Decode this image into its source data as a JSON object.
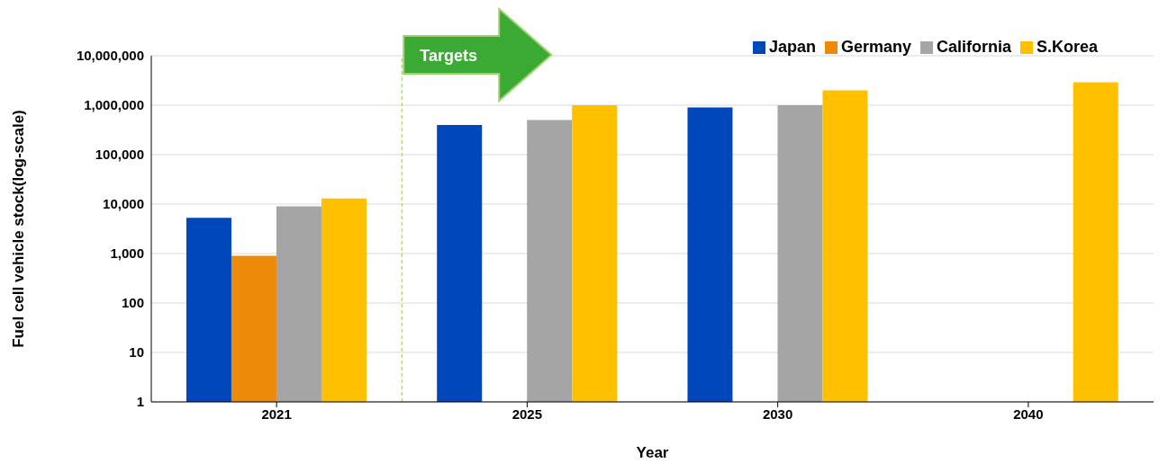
{
  "chart_data": {
    "type": "bar",
    "xlabel": "Year",
    "ylabel": "Fuel cell vehicle stock(log-scale)",
    "categories": [
      "2021",
      "2025",
      "2030",
      "2040"
    ],
    "series": [
      {
        "name": "Japan",
        "color": "#0047bb",
        "values": [
          5300,
          400000,
          900000,
          null
        ]
      },
      {
        "name": "Germany",
        "color": "#ee8a0a",
        "values": [
          900,
          null,
          null,
          null
        ]
      },
      {
        "name": "California",
        "color": "#a5a5a5",
        "values": [
          9000,
          500000,
          1000000,
          null
        ]
      },
      {
        "name": "S.Korea",
        "color": "#ffc000",
        "values": [
          13000,
          1000000,
          2000000,
          2900000
        ]
      }
    ],
    "log": "y",
    "ylim": [
      1,
      10000000
    ],
    "yticks": [
      1,
      10,
      {
        "value": 100,
        "label": "100"
      },
      {
        "value": 1000,
        "label": "1,000"
      },
      {
        "value": 10000,
        "label": "10,000"
      },
      {
        "value": 100000,
        "label": "100,000"
      },
      {
        "value": 1000000,
        "label": "1,000,000"
      },
      {
        "value": 10000000,
        "label": "10,000,000"
      }
    ],
    "grid": "y",
    "legend": "top right",
    "ref_lines": [
      {
        "axis": "x",
        "value": "2025",
        "label": "Targets",
        "color": "#92d050",
        "line_style": "dashed"
      }
    ]
  }
}
